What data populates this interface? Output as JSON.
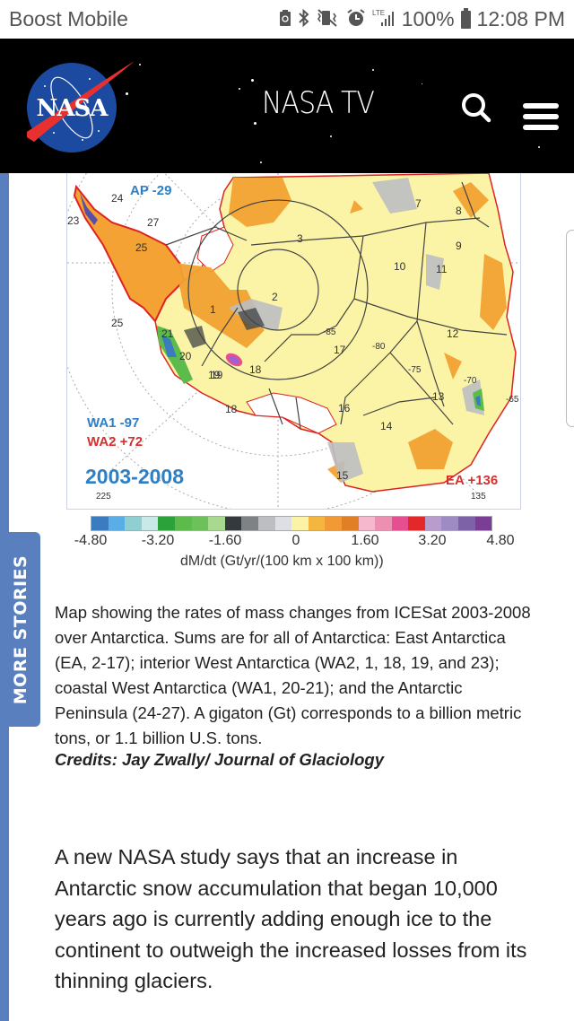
{
  "status_bar": {
    "carrier": "Boost Mobile",
    "icons": [
      "battery-saver-icon",
      "bluetooth-icon",
      "vibrate-mute-icon",
      "alarm-icon",
      "lte-signal-icon"
    ],
    "network": "LTE",
    "battery_percent": "100%",
    "time": "12:08 PM"
  },
  "header": {
    "logo_text": "NASA",
    "title": "NASA TV",
    "search_icon": "search-icon",
    "menu_icon": "hamburger-menu-icon"
  },
  "side_tab": {
    "label": "MORE STORIES"
  },
  "figure": {
    "period": "2003-2008",
    "regions": {
      "ap": "AP -29",
      "wa1": "WA1 -97",
      "wa2": "WA2 +72",
      "ea": "EA +136"
    },
    "basin_numbers": [
      "1",
      "2",
      "3",
      "6",
      "7",
      "8",
      "9",
      "10",
      "11",
      "12",
      "13",
      "14",
      "15",
      "16",
      "17",
      "18",
      "19",
      "20",
      "21",
      "22",
      "23",
      "24",
      "25",
      "26",
      "27"
    ],
    "latitude_labels": [
      "-85",
      "-80",
      "-75",
      "-70",
      "-65"
    ],
    "longitude_labels": [
      "225",
      "135"
    ],
    "colors": {
      "region_blue": "#2e7fc4",
      "region_red": "#d33030",
      "land_yellow": "#fbf4a6",
      "orange": "#f3a233"
    }
  },
  "colorbar": {
    "colors": [
      "#3b7bbf",
      "#5aaee6",
      "#8fcfd2",
      "#c9e8e8",
      "#2ca33a",
      "#5dbb4c",
      "#6cc15a",
      "#a9d98f",
      "#33393d",
      "#7e8285",
      "#bcbec2",
      "#dedfe4",
      "#fbf4a6",
      "#f4b63e",
      "#f19a35",
      "#e07f26",
      "#f6b8cd",
      "#ec8fb0",
      "#e54f8f",
      "#e2282b",
      "#b79ccc",
      "#9f8bc4",
      "#7e62a8",
      "#7a3f95"
    ],
    "ticks": [
      "-4.80",
      "-3.20",
      "-1.60",
      "0",
      "1.60",
      "3.20",
      "4.80"
    ],
    "title": "dM/dt (Gt/yr/(100 km x 100 km))"
  },
  "caption": {
    "text": "Map showing the rates of mass changes from ICESat 2003-2008 over Antarctica. Sums are for all of Antarctica: East Antarctica (EA, 2-17); interior West Antarctica (WA2, 1, 18, 19, and 23); coastal West Antarctica (WA1, 20-21); and the Antarctic Peninsula (24-27). A gigaton (Gt) corresponds to a billion metric tons, or 1.1 billion U.S. tons.",
    "credits": "Credits: Jay Zwally/ Journal of Glaciology"
  },
  "article": {
    "paragraph": "A new NASA study says that an increase in Antarctic snow accumulation that began 10,000 years ago is currently adding enough ice to the continent to outweigh the increased losses from its thinning glaciers."
  }
}
